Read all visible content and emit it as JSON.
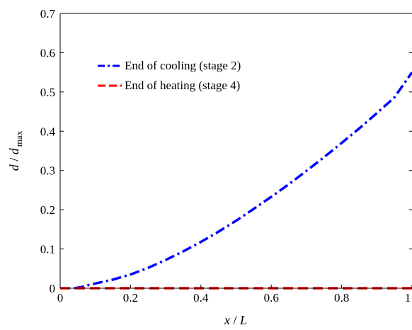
{
  "chart_data": {
    "type": "line",
    "xlabel": {
      "var": "x",
      "sep": " / ",
      "den": "L"
    },
    "ylabel": {
      "var": "d",
      "sep": " / ",
      "den": "d",
      "sub": "max"
    },
    "xlim": [
      0,
      1
    ],
    "ylim": [
      0,
      0.7
    ],
    "x_ticks": [
      0,
      0.2,
      0.4,
      0.6,
      0.8,
      1
    ],
    "x_tick_labels": [
      "0",
      "0.2",
      "0.4",
      "0.6",
      "0.8",
      "1"
    ],
    "y_ticks": [
      0,
      0.1,
      0.2,
      0.3,
      0.4,
      0.5,
      0.6,
      0.7
    ],
    "y_tick_labels": [
      "0",
      "0.1",
      "0.2",
      "0.3",
      "0.4",
      "0.5",
      "0.6",
      "0.7"
    ],
    "grid": false,
    "legend_position": "upper-left",
    "series": [
      {
        "name": "End of cooling (stage 2)",
        "color": "#0000ff",
        "style": "dash-dot",
        "x": [
          0.04,
          0.06,
          0.08,
          0.1,
          0.15,
          0.2,
          0.25,
          0.3,
          0.35,
          0.4,
          0.45,
          0.5,
          0.55,
          0.6,
          0.65,
          0.7,
          0.75,
          0.8,
          0.85,
          0.9,
          0.95,
          1.0
        ],
        "y": [
          0.0,
          0.003,
          0.008,
          0.012,
          0.022,
          0.035,
          0.052,
          0.072,
          0.094,
          0.118,
          0.144,
          0.172,
          0.202,
          0.233,
          0.265,
          0.299,
          0.334,
          0.37,
          0.407,
          0.446,
          0.486,
          0.55
        ]
      },
      {
        "name": "End of heating (stage 4)",
        "color": "#ff0000",
        "style": "dashed",
        "x": [
          0,
          1
        ],
        "y": [
          0,
          0
        ]
      }
    ]
  }
}
